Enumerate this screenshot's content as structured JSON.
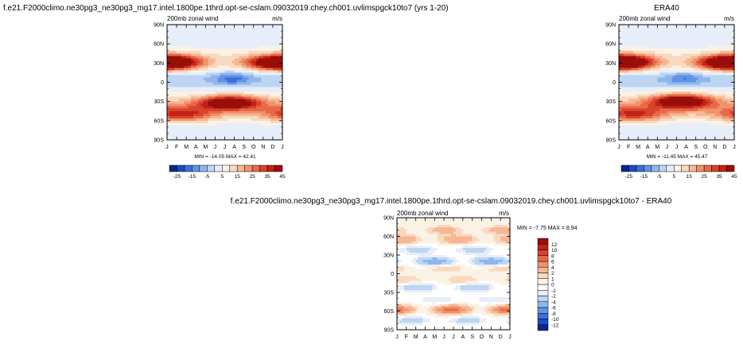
{
  "chart_data": [
    {
      "id": "model",
      "type": "heatmap",
      "title": "f.e21.F2000climo.ne30pg3_ne30pg3_mg17.intel.1800pe.1thrd.opt-se-cslam.09032019.chey.ch001.uvlimspgck10to7 (yrs 1-20)",
      "subtitle": "200mb zonal wind",
      "units": "m/s",
      "xlabel": "",
      "ylabel": "",
      "x_ticks": [
        "J",
        "F",
        "M",
        "A",
        "M",
        "J",
        "J",
        "A",
        "S",
        "O",
        "N",
        "D",
        "J"
      ],
      "y_ticks": [
        "90N",
        "60N",
        "30N",
        "0",
        "30S",
        "60S",
        "90S"
      ],
      "ylim": [
        -90,
        90
      ],
      "stats": "MIN = -14.05 MAX = 42.41",
      "colorbar": {
        "orientation": "horizontal",
        "levels": [
          -25,
          -20,
          -15,
          -10,
          -5,
          0,
          5,
          10,
          15,
          20,
          25,
          30,
          35,
          40,
          45
        ],
        "labels": [
          "-25",
          "-15",
          "-5",
          "5",
          "15",
          "25",
          "35",
          "45"
        ],
        "colors": [
          "#08278c",
          "#1d49c8",
          "#3b6ed8",
          "#6194e3",
          "#8fb6ec",
          "#bdd5f3",
          "#e7eef9",
          "#fbf2e6",
          "#f9d9bf",
          "#f5b793",
          "#f0926b",
          "#e8694a",
          "#d9422c",
          "#c12218",
          "#9a0e0a"
        ]
      },
      "features": [
        {
          "kind": "jet",
          "lat": 32,
          "month": 0.3,
          "peak": 34
        },
        {
          "kind": "jet",
          "lat": 30,
          "month": 11.6,
          "peak": 31
        },
        {
          "kind": "jet",
          "lat": -32,
          "month": 6.5,
          "peak": 42
        },
        {
          "kind": "jet",
          "lat": -50,
          "month": 1.5,
          "peak": 26
        },
        {
          "kind": "easterly",
          "lat": 6,
          "month": 6.8,
          "peak": -14
        }
      ]
    },
    {
      "id": "obs",
      "type": "heatmap",
      "title": "ERA40",
      "subtitle": "200mb zonal wind",
      "units": "m/s",
      "xlabel": "",
      "ylabel": "",
      "x_ticks": [
        "J",
        "F",
        "M",
        "A",
        "M",
        "J",
        "J",
        "A",
        "S",
        "O",
        "N",
        "D",
        "J"
      ],
      "y_ticks": [
        "90N",
        "60N",
        "30N",
        "0",
        "30S",
        "60S",
        "90S"
      ],
      "ylim": [
        -90,
        90
      ],
      "stats": "MIN = -11.45 MAX = 45.47",
      "colorbar": {
        "orientation": "horizontal",
        "levels": [
          -25,
          -20,
          -15,
          -10,
          -5,
          0,
          5,
          10,
          15,
          20,
          25,
          30,
          35,
          40,
          45
        ],
        "labels": [
          "-25",
          "-15",
          "-5",
          "5",
          "15",
          "25",
          "35",
          "45"
        ],
        "colors": [
          "#08278c",
          "#1d49c8",
          "#3b6ed8",
          "#6194e3",
          "#8fb6ec",
          "#bdd5f3",
          "#e7eef9",
          "#fbf2e6",
          "#f9d9bf",
          "#f5b793",
          "#f0926b",
          "#e8694a",
          "#d9422c",
          "#c12218",
          "#9a0e0a"
        ]
      },
      "features": [
        {
          "kind": "jet",
          "lat": 32,
          "month": 0.3,
          "peak": 38
        },
        {
          "kind": "jet",
          "lat": 30,
          "month": 11.6,
          "peak": 34
        },
        {
          "kind": "jet",
          "lat": -30,
          "month": 6.5,
          "peak": 45
        },
        {
          "kind": "jet",
          "lat": -50,
          "month": 1.5,
          "peak": 24
        },
        {
          "kind": "easterly",
          "lat": 6,
          "month": 6.8,
          "peak": -11
        }
      ]
    },
    {
      "id": "diff",
      "type": "heatmap",
      "title": "f.e21.F2000climo.ne30pg3_ne30pg3_mg17.intel.1800pe.1thrd.opt-se-cslam.09032019.chey.ch001.uvlimspgck10to7 - ERA40",
      "subtitle": "200mb zonal wind",
      "units": "m/s",
      "xlabel": "",
      "ylabel": "",
      "x_ticks": [
        "J",
        "F",
        "M",
        "A",
        "M",
        "J",
        "J",
        "A",
        "S",
        "O",
        "N",
        "D",
        "J"
      ],
      "y_ticks": [
        "90N",
        "60N",
        "30N",
        "0",
        "30S",
        "60S",
        "90S"
      ],
      "ylim": [
        -90,
        90
      ],
      "stats": "MIN = -7.75 MAX = 8.94",
      "colorbar": {
        "orientation": "vertical",
        "levels": [
          -12,
          -10,
          -8,
          -6,
          -4,
          -2,
          -1,
          0,
          1,
          2,
          4,
          6,
          8,
          10,
          12
        ],
        "labels": [
          "-12",
          "-10",
          "-8",
          "-6",
          "-4",
          "-2",
          "-1",
          "0",
          "1",
          "2",
          "4",
          "6",
          "8",
          "10",
          "12"
        ],
        "colors": [
          "#08278c",
          "#1d49c8",
          "#3b6ed8",
          "#6194e3",
          "#8fb6ec",
          "#bdd5f3",
          "#e7eef9",
          "#ffffff",
          "#fbf2e6",
          "#f9d9bf",
          "#f5b793",
          "#f0926b",
          "#e8694a",
          "#d9422c",
          "#c12218",
          "#9a0e0a"
        ]
      },
      "features": [
        {
          "kind": "band",
          "lat": 70,
          "peak": 3
        },
        {
          "kind": "band",
          "lat": 55,
          "peak": 4
        },
        {
          "kind": "band",
          "lat": 38,
          "peak": -3
        },
        {
          "kind": "band",
          "lat": 20,
          "peak": -6
        },
        {
          "kind": "band",
          "lat": 8,
          "peak": 2
        },
        {
          "kind": "band",
          "lat": -10,
          "peak": 2
        },
        {
          "kind": "band",
          "lat": -22,
          "peak": -4
        },
        {
          "kind": "band",
          "lat": -42,
          "peak": -2
        },
        {
          "kind": "band",
          "lat": -58,
          "peak": 7
        },
        {
          "kind": "band",
          "lat": -75,
          "peak": -3
        }
      ]
    }
  ]
}
